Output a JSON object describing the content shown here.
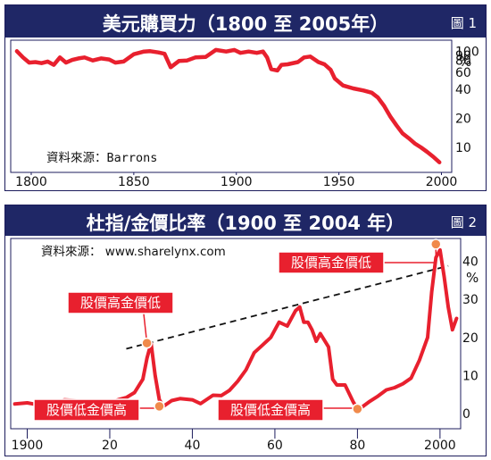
{
  "chart_data": [
    {
      "type": "line",
      "title": "美元購買力（1800 至 2005年）",
      "figure_label": "圖 1",
      "source": "資料來源：Barrons",
      "y_unit": "%",
      "y_scale": "log",
      "yticks": [
        "100",
        "90",
        "80",
        "60",
        "40",
        "20",
        "10"
      ],
      "xticks": [
        "1800",
        "1850",
        "1900",
        "1950",
        "2000"
      ],
      "xlim": [
        1790,
        2005
      ],
      "ylim": [
        5.5,
        130
      ],
      "color": "#e8202e",
      "x": [
        1793,
        1796,
        1799,
        1802,
        1805,
        1808,
        1811,
        1814,
        1817,
        1820,
        1823,
        1826,
        1830,
        1834,
        1838,
        1841,
        1845,
        1850,
        1855,
        1858,
        1862,
        1865,
        1868,
        1872,
        1876,
        1880,
        1885,
        1890,
        1895,
        1899,
        1902,
        1906,
        1910,
        1913,
        1915,
        1917,
        1920,
        1922,
        1925,
        1930,
        1933,
        1936,
        1940,
        1943,
        1946,
        1948,
        1952,
        1957,
        1962,
        1966,
        1969,
        1972,
        1975,
        1978,
        1981,
        1984,
        1987,
        1990,
        1993,
        1996,
        1999
      ],
      "y": [
        100,
        86,
        76,
        77,
        75,
        78,
        72,
        86,
        76,
        81,
        84,
        86,
        80,
        84,
        82,
        76,
        78,
        93,
        99,
        100,
        97,
        94,
        68,
        79,
        80,
        86,
        87,
        103,
        99,
        103,
        96,
        99,
        96,
        99,
        86,
        65,
        63,
        72,
        73,
        77,
        86,
        88,
        77,
        73,
        64,
        52,
        44,
        41,
        39,
        37,
        33,
        27,
        21,
        17,
        14,
        12.5,
        11,
        10,
        9,
        8,
        7
      ]
    },
    {
      "type": "line",
      "title": "杜指/金價比率（1900 至 2004 年）",
      "figure_label": "圖 2",
      "source": "資料來源： www.sharelynx.com",
      "y_unit": "%",
      "yticks": [
        40,
        30,
        20,
        10,
        0
      ],
      "ylim": [
        -4,
        46
      ],
      "xticks": [
        "1900",
        "20",
        "40",
        "60",
        "80",
        "2000"
      ],
      "xlim": [
        1896,
        2005
      ],
      "color": "#e8202e",
      "x": [
        1897,
        1900,
        1902,
        1905,
        1907,
        1909,
        1912,
        1915,
        1917,
        1918,
        1920,
        1922,
        1924,
        1926,
        1928,
        1929,
        1930,
        1931,
        1932,
        1933,
        1935,
        1937,
        1940,
        1942,
        1945,
        1947,
        1949,
        1951,
        1953,
        1955,
        1957,
        1959,
        1961,
        1963,
        1965,
        1966,
        1967,
        1968,
        1969,
        1970,
        1971,
        1973,
        1974,
        1975,
        1977,
        1979,
        1980,
        1981,
        1983,
        1985,
        1987,
        1989,
        1991,
        1993,
        1995,
        1997,
        1998,
        1999,
        2000,
        2001,
        2002,
        2003,
        2004
      ],
      "y": [
        2.5,
        2.8,
        2.4,
        3.2,
        2.2,
        3.6,
        3.4,
        2.7,
        3.1,
        2.6,
        2.9,
        3.6,
        4.2,
        5.5,
        9,
        14.5,
        18.5,
        10,
        3.6,
        1.9,
        3.4,
        3.9,
        3.6,
        2.6,
        4.8,
        4.7,
        6.1,
        8.5,
        11.5,
        16,
        18,
        20,
        24,
        23,
        27,
        28,
        24,
        24,
        22,
        19,
        21,
        17.5,
        9,
        7.5,
        7.5,
        3,
        1.2,
        1.6,
        3.2,
        4.6,
        6.2,
        6.8,
        7.8,
        9.3,
        14,
        20,
        32,
        41,
        43,
        36,
        28,
        22,
        25
      ],
      "trendline": {
        "x": [
          1924,
          2002
        ],
        "y": [
          17,
          38.8
        ],
        "style": "dashed"
      },
      "annotations": [
        {
          "label": "股價高金價低",
          "x": 1929,
          "y": 18.5
        },
        {
          "label": "股價低金價高",
          "x": 1932,
          "y": 1.9
        },
        {
          "label": "股價低金價高",
          "x": 1980,
          "y": 1.2
        },
        {
          "label": "股價高金價低",
          "x": 1999,
          "y": 44.5
        }
      ]
    }
  ]
}
